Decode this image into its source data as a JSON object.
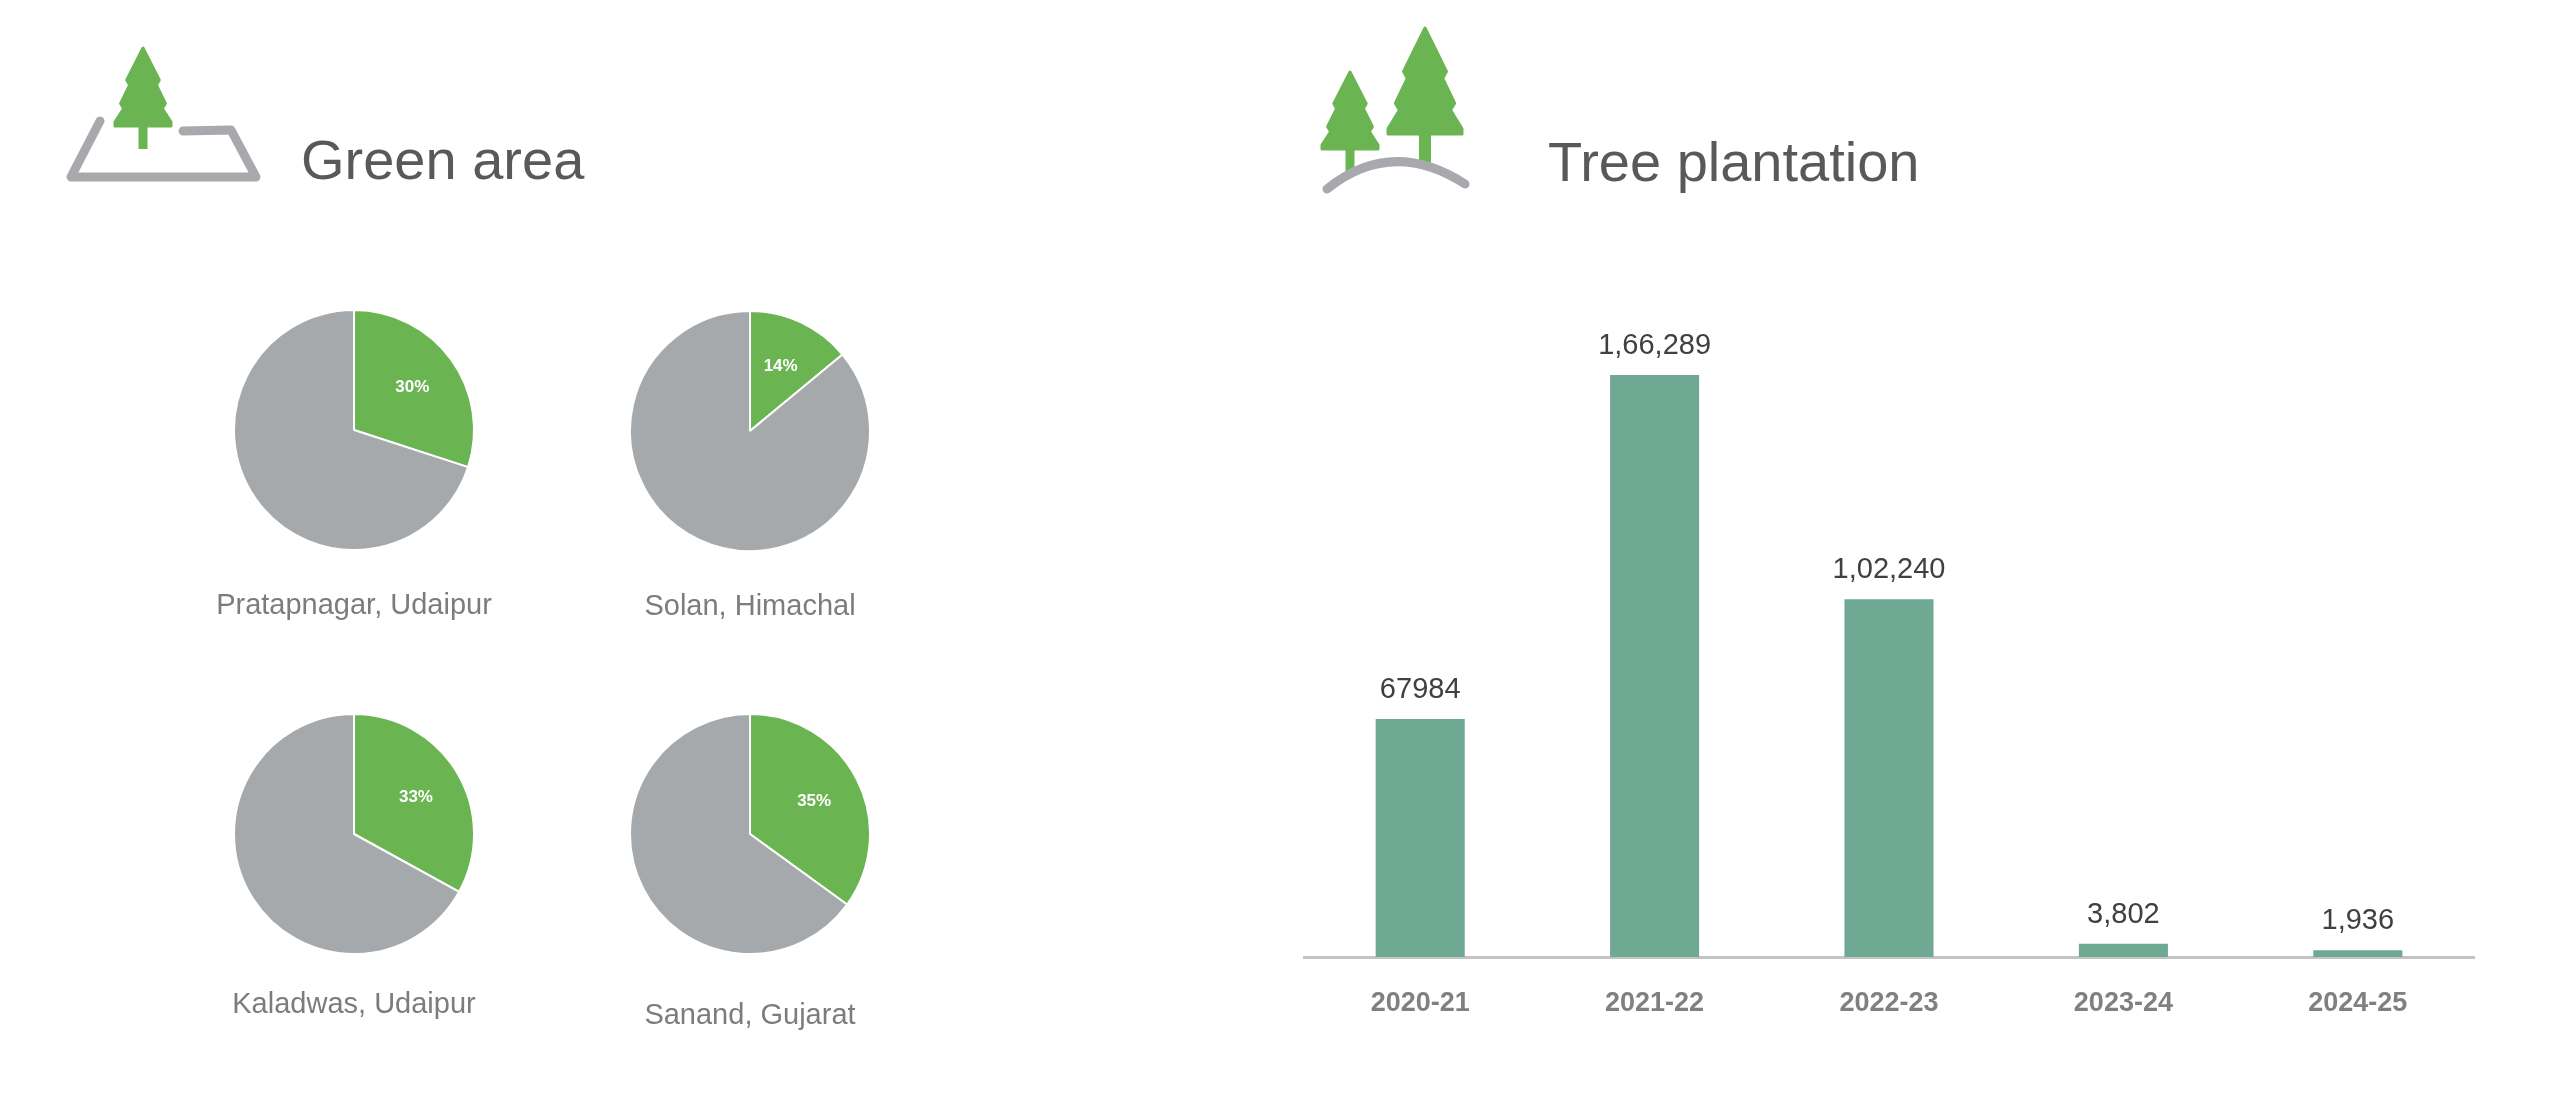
{
  "chart_data": [
    {
      "type": "other",
      "title": "Green area"
    },
    {
      "type": "pie",
      "title": "Pratapnagar, Udaipur",
      "categories": [
        null,
        null
      ],
      "values": [
        30,
        70
      ],
      "colors": [
        "#6ab552",
        "#a6a9ac"
      ],
      "value_labels": [
        "30%",
        null
      ]
    },
    {
      "type": "pie",
      "title": "Solan, Himachal",
      "categories": [
        null,
        null
      ],
      "values": [
        14,
        86
      ],
      "colors": [
        "#6ab552",
        "#a6a9ac"
      ],
      "value_labels": [
        "14%",
        null
      ]
    },
    {
      "type": "pie",
      "title": "Kaladwas, Udaipur",
      "categories": [
        null,
        null
      ],
      "values": [
        33,
        67
      ],
      "colors": [
        "#6ab552",
        "#a6a9ac"
      ],
      "value_labels": [
        "33%",
        null
      ]
    },
    {
      "type": "pie",
      "title": "Sanand, Gujarat",
      "categories": [
        null,
        null
      ],
      "values": [
        35,
        65
      ],
      "colors": [
        "#6ab552",
        "#a6a9ac"
      ],
      "value_labels": [
        "35%",
        null
      ]
    },
    {
      "type": "bar",
      "title": "Tree plantation",
      "categories": [
        "2020-21",
        "2021-22",
        "2022-23",
        "2023-24",
        "2024-25"
      ],
      "values": [
        67984,
        166289,
        102240,
        3802,
        1936
      ],
      "color": "#6fa893",
      "value_labels": [
        "67984",
        "1,66,289",
        "1,02,240",
        "3,802",
        "1,936"
      ],
      "tick_labels": "x"
    }
  ]
}
